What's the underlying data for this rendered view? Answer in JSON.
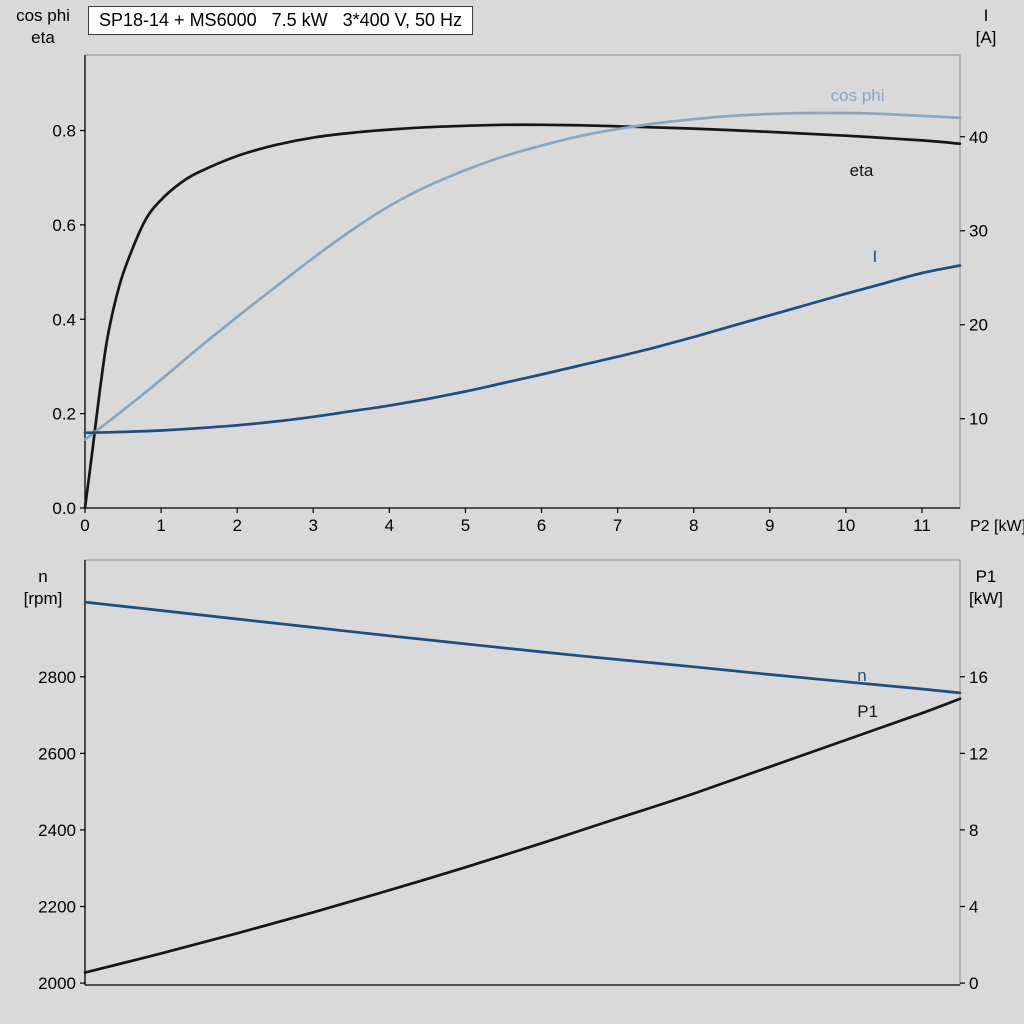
{
  "title_box": {
    "text": "SP18-14 + MS6000   7.5 kW   3*400 V, 50 Hz"
  },
  "colors": {
    "background": "#d9d9d9",
    "text": "#000000",
    "axis": "#000000",
    "frame": "#8f8f8f",
    "title_box_bg": "#ffffff",
    "title_box_border": "#3a3a3a",
    "eta": "#161616",
    "cos_phi": "#87a6c3",
    "current": "#1d4e7d",
    "speed": "#1d4e7d",
    "power": "#161616"
  },
  "chart_data": [
    {
      "type": "line",
      "title": "SP18-14 + MS6000   7.5 kW   3*400 V, 50 Hz",
      "xlabel": "P2 [kW]",
      "ylabel_left_lines": [
        "cos phi",
        "eta"
      ],
      "ylabel_right_lines": [
        "I",
        "[A]"
      ],
      "xlim": [
        0,
        11.5
      ],
      "ylim_left": [
        0,
        0.96
      ],
      "ylim_right": [
        0.5,
        48.7
      ],
      "grid": false,
      "legend_position": "inline-end-labels",
      "xticks": [
        0,
        1,
        2,
        3,
        4,
        5,
        6,
        7,
        8,
        9,
        10,
        11
      ],
      "xtick_labels": [
        "0",
        "1",
        "2",
        "3",
        "4",
        "5",
        "6",
        "7",
        "8",
        "9",
        "10",
        "11"
      ],
      "yticks_left": [
        0.0,
        0.2,
        0.4,
        0.6,
        0.8
      ],
      "ytick_labels_left": [
        "0.0",
        "0.2",
        "0.4",
        "0.6",
        "0.8"
      ],
      "yticks_right": [
        10,
        20,
        30,
        40
      ],
      "ytick_labels_right": [
        "10",
        "20",
        "30",
        "40"
      ],
      "series": [
        {
          "id": "eta",
          "name": "eta",
          "axis": "left",
          "color": "#161616",
          "label_pos": [
            10.05,
            0.716
          ],
          "x": [
            0,
            0.1,
            0.2,
            0.3,
            0.45,
            0.6,
            0.8,
            1,
            1.25,
            1.5,
            2,
            2.5,
            3,
            3.5,
            4,
            4.5,
            5,
            5.5,
            6,
            6.5,
            7,
            8,
            9,
            10,
            11,
            11.5
          ],
          "y": [
            0,
            0.125,
            0.255,
            0.365,
            0.47,
            0.54,
            0.612,
            0.653,
            0.688,
            0.712,
            0.746,
            0.769,
            0.785,
            0.795,
            0.802,
            0.807,
            0.81,
            0.812,
            0.812,
            0.811,
            0.809,
            0.804,
            0.797,
            0.789,
            0.779,
            0.772
          ]
        },
        {
          "id": "cos-phi",
          "name": "cos phi",
          "axis": "left",
          "color": "#87a6c3",
          "label_pos": [
            9.8,
            0.875
          ],
          "x": [
            0,
            0.5,
            1,
            1.5,
            2,
            2.5,
            3,
            3.5,
            4,
            4.5,
            5,
            5.5,
            6,
            6.5,
            7,
            7.5,
            8,
            8.5,
            9,
            9.5,
            10,
            10.5,
            11,
            11.5
          ],
          "y": [
            0.145,
            0.207,
            0.272,
            0.34,
            0.405,
            0.468,
            0.53,
            0.588,
            0.64,
            0.682,
            0.716,
            0.745,
            0.768,
            0.788,
            0.803,
            0.815,
            0.824,
            0.831,
            0.835,
            0.837,
            0.837,
            0.835,
            0.831,
            0.827
          ]
        },
        {
          "id": "current",
          "name": "I",
          "axis": "right",
          "color": "#1d4e7d",
          "label_pos": [
            10.35,
            27.3
          ],
          "x": [
            0,
            0.5,
            1,
            1.5,
            2,
            2.5,
            3,
            3.5,
            4,
            4.5,
            5,
            5.5,
            6,
            6.5,
            7,
            7.5,
            8,
            8.5,
            9,
            9.5,
            10,
            10.5,
            11,
            11.5
          ],
          "y": [
            8.5,
            8.6,
            8.75,
            9.0,
            9.3,
            9.7,
            10.2,
            10.8,
            11.4,
            12.1,
            12.9,
            13.8,
            14.7,
            15.65,
            16.6,
            17.6,
            18.7,
            19.85,
            21.0,
            22.15,
            23.3,
            24.4,
            25.5,
            26.3
          ]
        }
      ]
    },
    {
      "type": "line",
      "title": "",
      "xlabel": "",
      "ylabel_left_lines": [
        "n",
        "[rpm]"
      ],
      "ylabel_right_lines": [
        "P1",
        "[kW]"
      ],
      "xlim": [
        0,
        11.5
      ],
      "ylim_left": [
        1995,
        3105
      ],
      "ylim_right": [
        -0.1,
        22.1
      ],
      "grid": false,
      "legend_position": "inline-end-labels",
      "xticks": [],
      "xtick_labels": [],
      "yticks_left": [
        2000,
        2200,
        2400,
        2600,
        2800
      ],
      "ytick_labels_left": [
        "2000",
        "2200",
        "2400",
        "2600",
        "2800"
      ],
      "yticks_right": [
        0,
        4,
        8,
        12,
        16
      ],
      "ytick_labels_right": [
        "0",
        "4",
        "8",
        "12",
        "16"
      ],
      "series": [
        {
          "id": "speed",
          "name": "n",
          "axis": "left",
          "color": "#1d4e7d",
          "label_pos": [
            10.15,
            2805
          ],
          "x": [
            0,
            1,
            2,
            3,
            4,
            5,
            6,
            7,
            8,
            9,
            10,
            11,
            11.5
          ],
          "y": [
            2995,
            2973,
            2951,
            2929,
            2907,
            2886,
            2865,
            2845,
            2826,
            2806,
            2787,
            2768,
            2758
          ]
        },
        {
          "id": "power",
          "name": "P1",
          "axis": "right",
          "color": "#161616",
          "label_pos": [
            10.15,
            14.2
          ],
          "x": [
            0,
            1,
            2,
            3,
            4,
            5,
            6,
            7,
            8,
            9,
            10,
            11,
            11.5
          ],
          "y": [
            0.55,
            1.55,
            2.6,
            3.7,
            4.85,
            6.05,
            7.3,
            8.6,
            9.9,
            11.3,
            12.7,
            14.1,
            14.85
          ]
        }
      ]
    }
  ]
}
